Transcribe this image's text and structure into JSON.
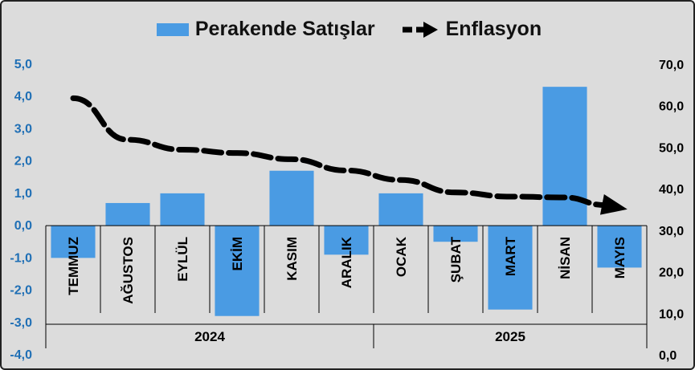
{
  "chart_data": {
    "type": "bar",
    "categories": [
      "TEMMUZ",
      "AĞUSTOS",
      "EYLÜL",
      "EKİM",
      "KASIM",
      "ARALIK",
      "OCAK",
      "ŞUBAT",
      "MART",
      "NİSAN",
      "MAYIS"
    ],
    "years": [
      {
        "label": "2024",
        "span": 6
      },
      {
        "label": "2025",
        "span": 5
      }
    ],
    "series": [
      {
        "name": "Perakende Satışlar",
        "axis": "left",
        "type": "bar",
        "color": "#4a9be3",
        "values": [
          -1.0,
          0.7,
          1.0,
          -2.8,
          1.7,
          -0.9,
          1.0,
          -0.5,
          -2.6,
          4.3,
          -1.3
        ]
      },
      {
        "name": "Enflasyon",
        "axis": "right",
        "type": "line",
        "style": "dashed-arrow",
        "color": "#000000",
        "values": [
          61.8,
          51.8,
          49.4,
          48.6,
          47.1,
          44.4,
          42.1,
          39.1,
          38.1,
          37.9,
          35.4
        ]
      }
    ],
    "y_left": {
      "min": -4,
      "max": 5,
      "ticks": [
        "5,0",
        "4,0",
        "3,0",
        "2,0",
        "1,0",
        "0,0",
        "-1,0",
        "-2,0",
        "-3,0",
        "-4,0"
      ],
      "color": "#1f6fb5"
    },
    "y_right": {
      "min": 0,
      "max": 70,
      "ticks": [
        "70,0",
        "60,0",
        "50,0",
        "40,0",
        "30,0",
        "20,0",
        "10,0",
        "0,0"
      ],
      "color": "#000000"
    },
    "legend": {
      "position": "top"
    },
    "grid": false
  }
}
